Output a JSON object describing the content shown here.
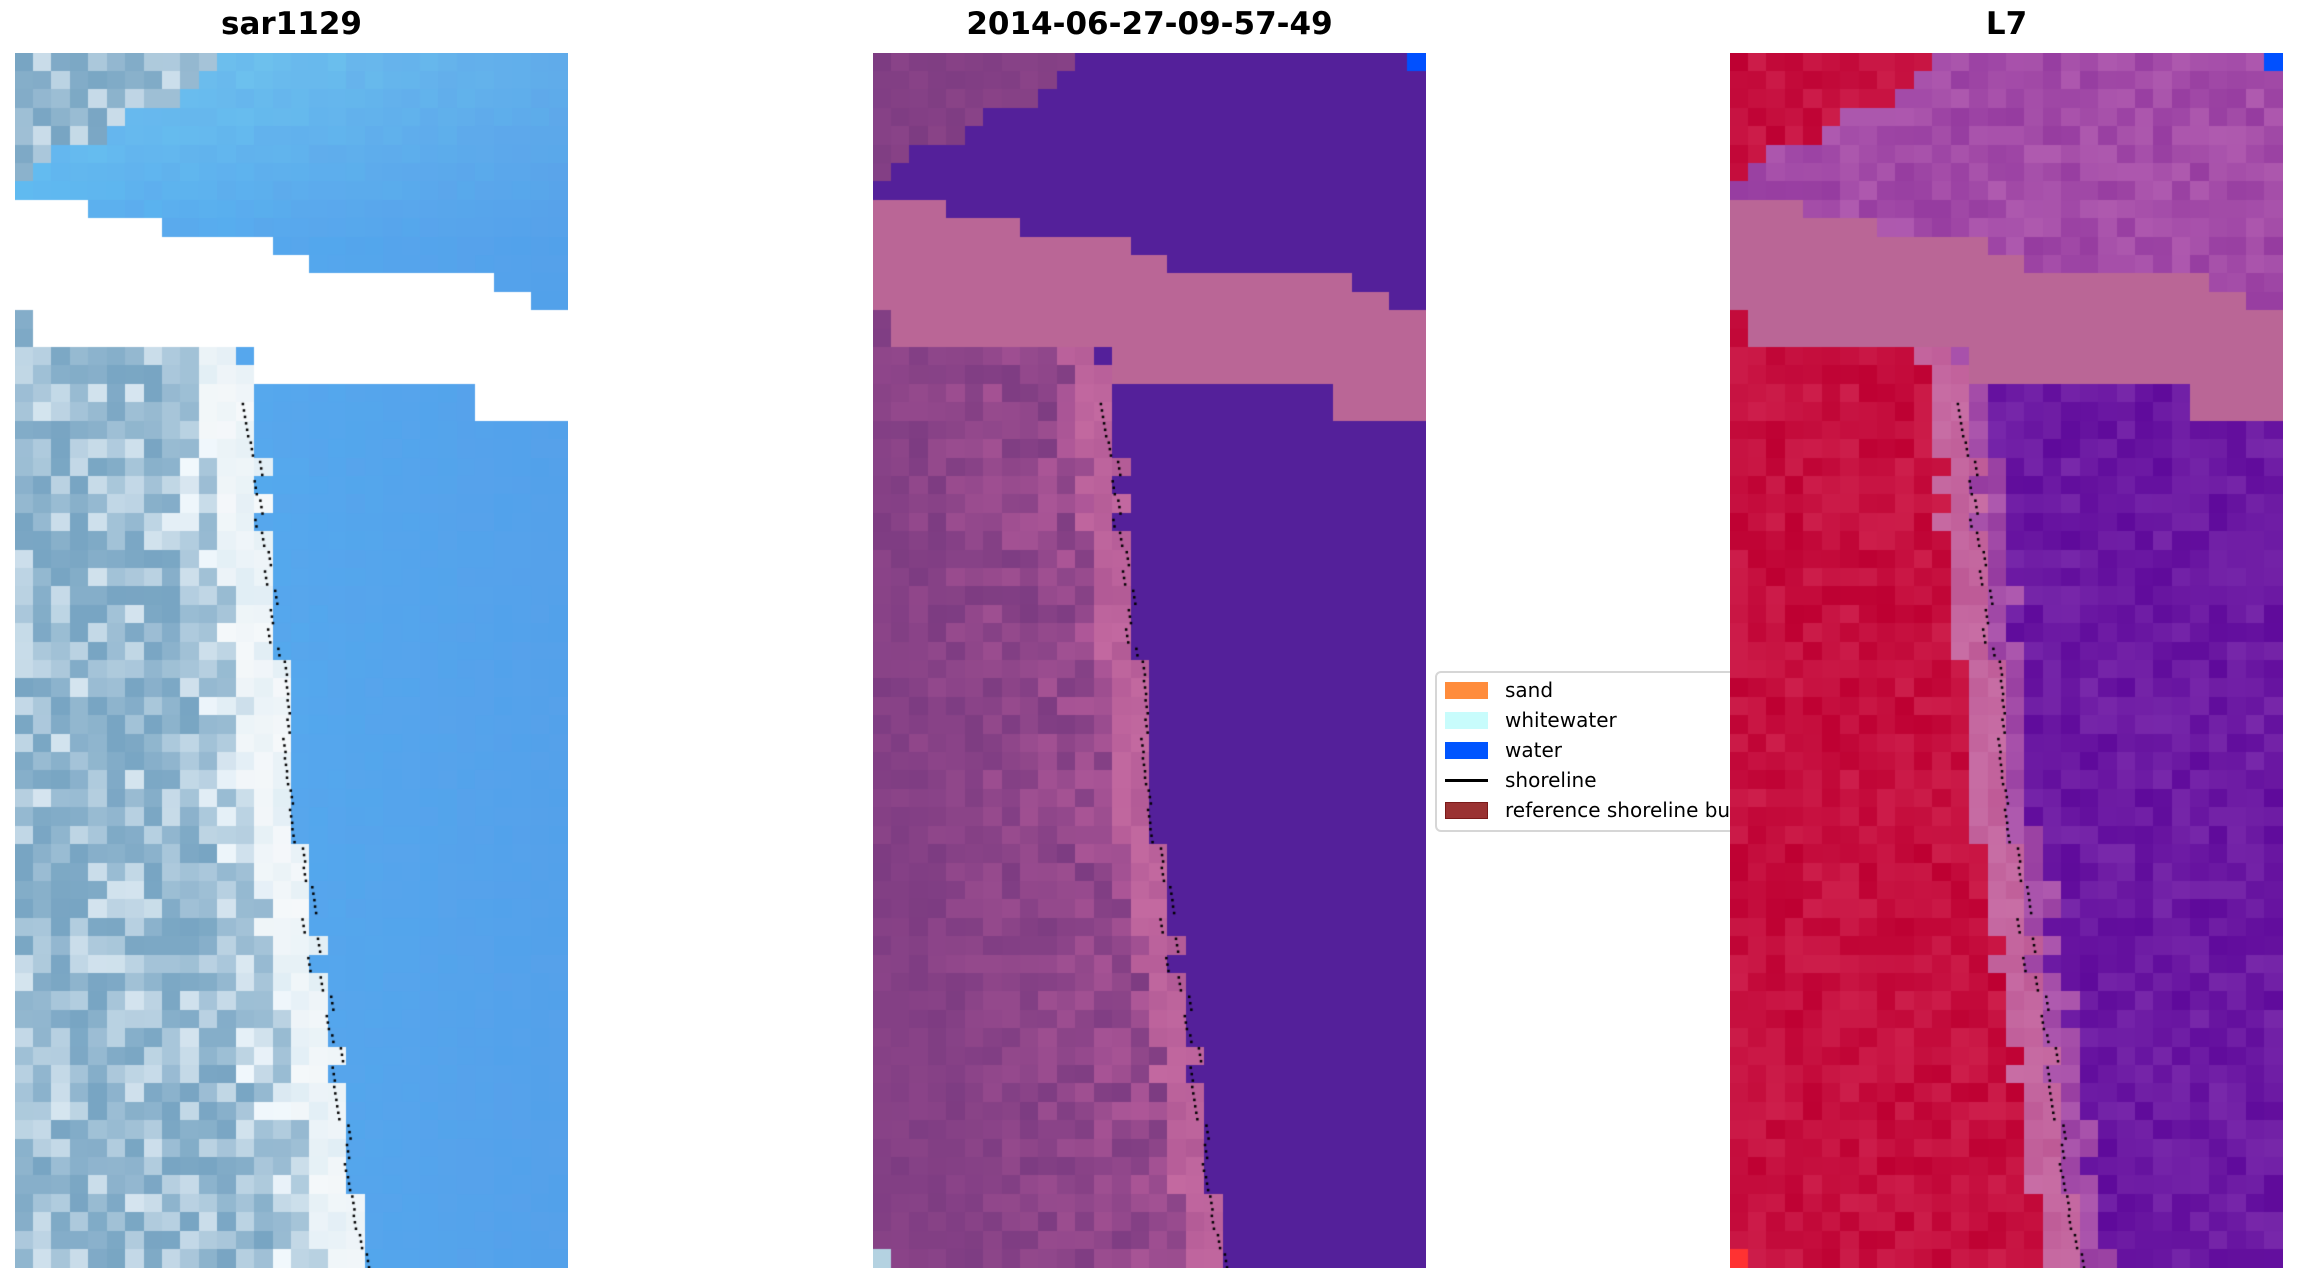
{
  "panels": [
    {
      "title": "sar1129"
    },
    {
      "title": "2014-06-27-09-57-49"
    },
    {
      "title": "L7"
    }
  ],
  "legend": {
    "items": [
      {
        "label": "sand",
        "type": "patch",
        "color": "#ff8c3c"
      },
      {
        "label": "whitewater",
        "type": "patch",
        "color": "#c8fcfc"
      },
      {
        "label": "water",
        "type": "patch",
        "color": "#0055ff"
      },
      {
        "label": "shoreline",
        "type": "line",
        "color": "#000000"
      },
      {
        "label": "reference shoreline bu",
        "type": "patch",
        "color": "#9a3232"
      }
    ]
  }
}
